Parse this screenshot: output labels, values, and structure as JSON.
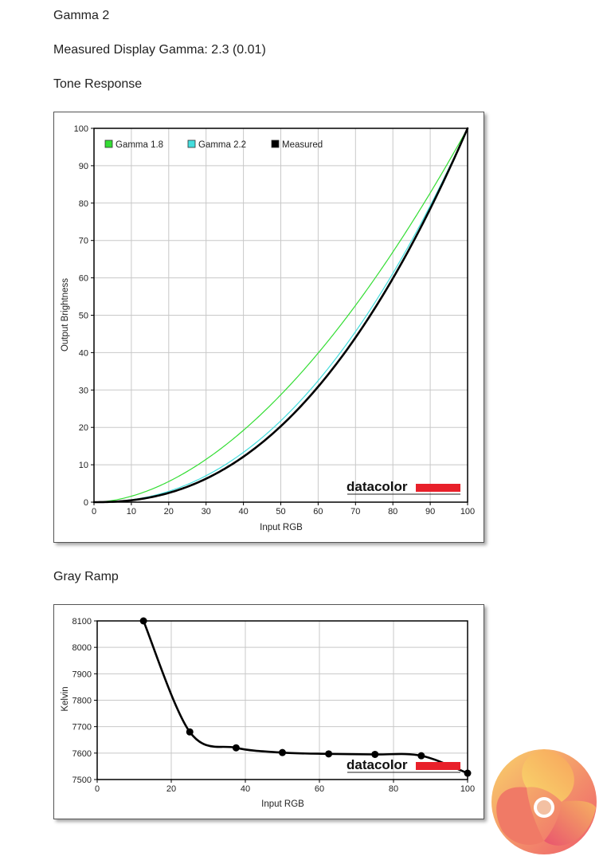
{
  "headings": {
    "gamma": "Gamma 2",
    "measured": "Measured Display Gamma: 2.3 (0.01)",
    "tone": "Tone Response",
    "gray": "Gray Ramp"
  },
  "watermark": "datacolor",
  "colors": {
    "gamma18": "#33dd33",
    "gamma22": "#44dddd",
    "measured": "#000000",
    "watermark_bar": "#e8202a",
    "grid": "#c8c8c8"
  },
  "logo": {
    "icon": "kitguru-swirl-logo"
  },
  "chart_data": [
    {
      "type": "line",
      "xlabel": "Input RGB",
      "ylabel": "Output Brightness",
      "xlim": [
        0,
        100
      ],
      "ylim": [
        0,
        100
      ],
      "xticks": [
        0,
        10,
        20,
        30,
        40,
        50,
        60,
        70,
        80,
        90,
        100
      ],
      "yticks": [
        0,
        10,
        20,
        30,
        40,
        50,
        60,
        70,
        80,
        90,
        100
      ],
      "grid": true,
      "legend": "top-left",
      "series": [
        {
          "name": "Gamma 1.8",
          "color": "#33dd33",
          "width": 1.2,
          "gamma": 1.8,
          "x": [
            0,
            5,
            10,
            15,
            20,
            25,
            30,
            35,
            40,
            45,
            50,
            55,
            60,
            65,
            70,
            75,
            80,
            85,
            90,
            95,
            100
          ],
          "y": [
            0,
            0.5,
            1.6,
            3.3,
            5.5,
            8.2,
            11.5,
            15.1,
            19.2,
            23.7,
            28.7,
            34.1,
            39.9,
            46.0,
            52.6,
            59.6,
            66.9,
            74.7,
            82.8,
            91.2,
            100
          ]
        },
        {
          "name": "Gamma 2.2",
          "color": "#44dddd",
          "width": 1.2,
          "gamma": 2.2,
          "x": [
            0,
            5,
            10,
            15,
            20,
            25,
            30,
            35,
            40,
            45,
            50,
            55,
            60,
            65,
            70,
            75,
            80,
            85,
            90,
            95,
            100
          ],
          "y": [
            0,
            0.1,
            0.6,
            1.5,
            2.9,
            4.7,
            7.1,
            9.9,
            13.3,
            17.3,
            21.8,
            26.9,
            32.5,
            38.8,
            45.6,
            53.1,
            61.2,
            69.9,
            79.3,
            89.3,
            100
          ]
        },
        {
          "name": "Measured",
          "color": "#000000",
          "width": 2.6,
          "gamma": 2.3,
          "x": [
            0,
            5,
            10,
            15,
            20,
            25,
            30,
            35,
            40,
            45,
            50,
            55,
            60,
            65,
            70,
            75,
            80,
            85,
            90,
            95,
            100
          ],
          "y": [
            0,
            0.1,
            0.5,
            1.3,
            2.5,
            4.1,
            6.3,
            8.9,
            12.1,
            15.9,
            20.3,
            25.2,
            30.9,
            37.1,
            44.0,
            51.6,
            59.8,
            68.8,
            78.5,
            88.9,
            100
          ]
        }
      ]
    },
    {
      "type": "line",
      "xlabel": "Input RGB",
      "ylabel": "Kelvin",
      "xlim": [
        0,
        100
      ],
      "ylim": [
        7500,
        8100
      ],
      "xticks": [
        0,
        20,
        40,
        60,
        80,
        100
      ],
      "yticks": [
        7500,
        7600,
        7700,
        7800,
        7900,
        8000,
        8100
      ],
      "grid": true,
      "series": [
        {
          "color": "#000000",
          "x": [
            12.5,
            25,
            37.5,
            50,
            62.5,
            75,
            87.5,
            100
          ],
          "y": [
            8100,
            7680,
            7620,
            7602,
            7597,
            7595,
            7590,
            7524
          ]
        }
      ]
    }
  ]
}
